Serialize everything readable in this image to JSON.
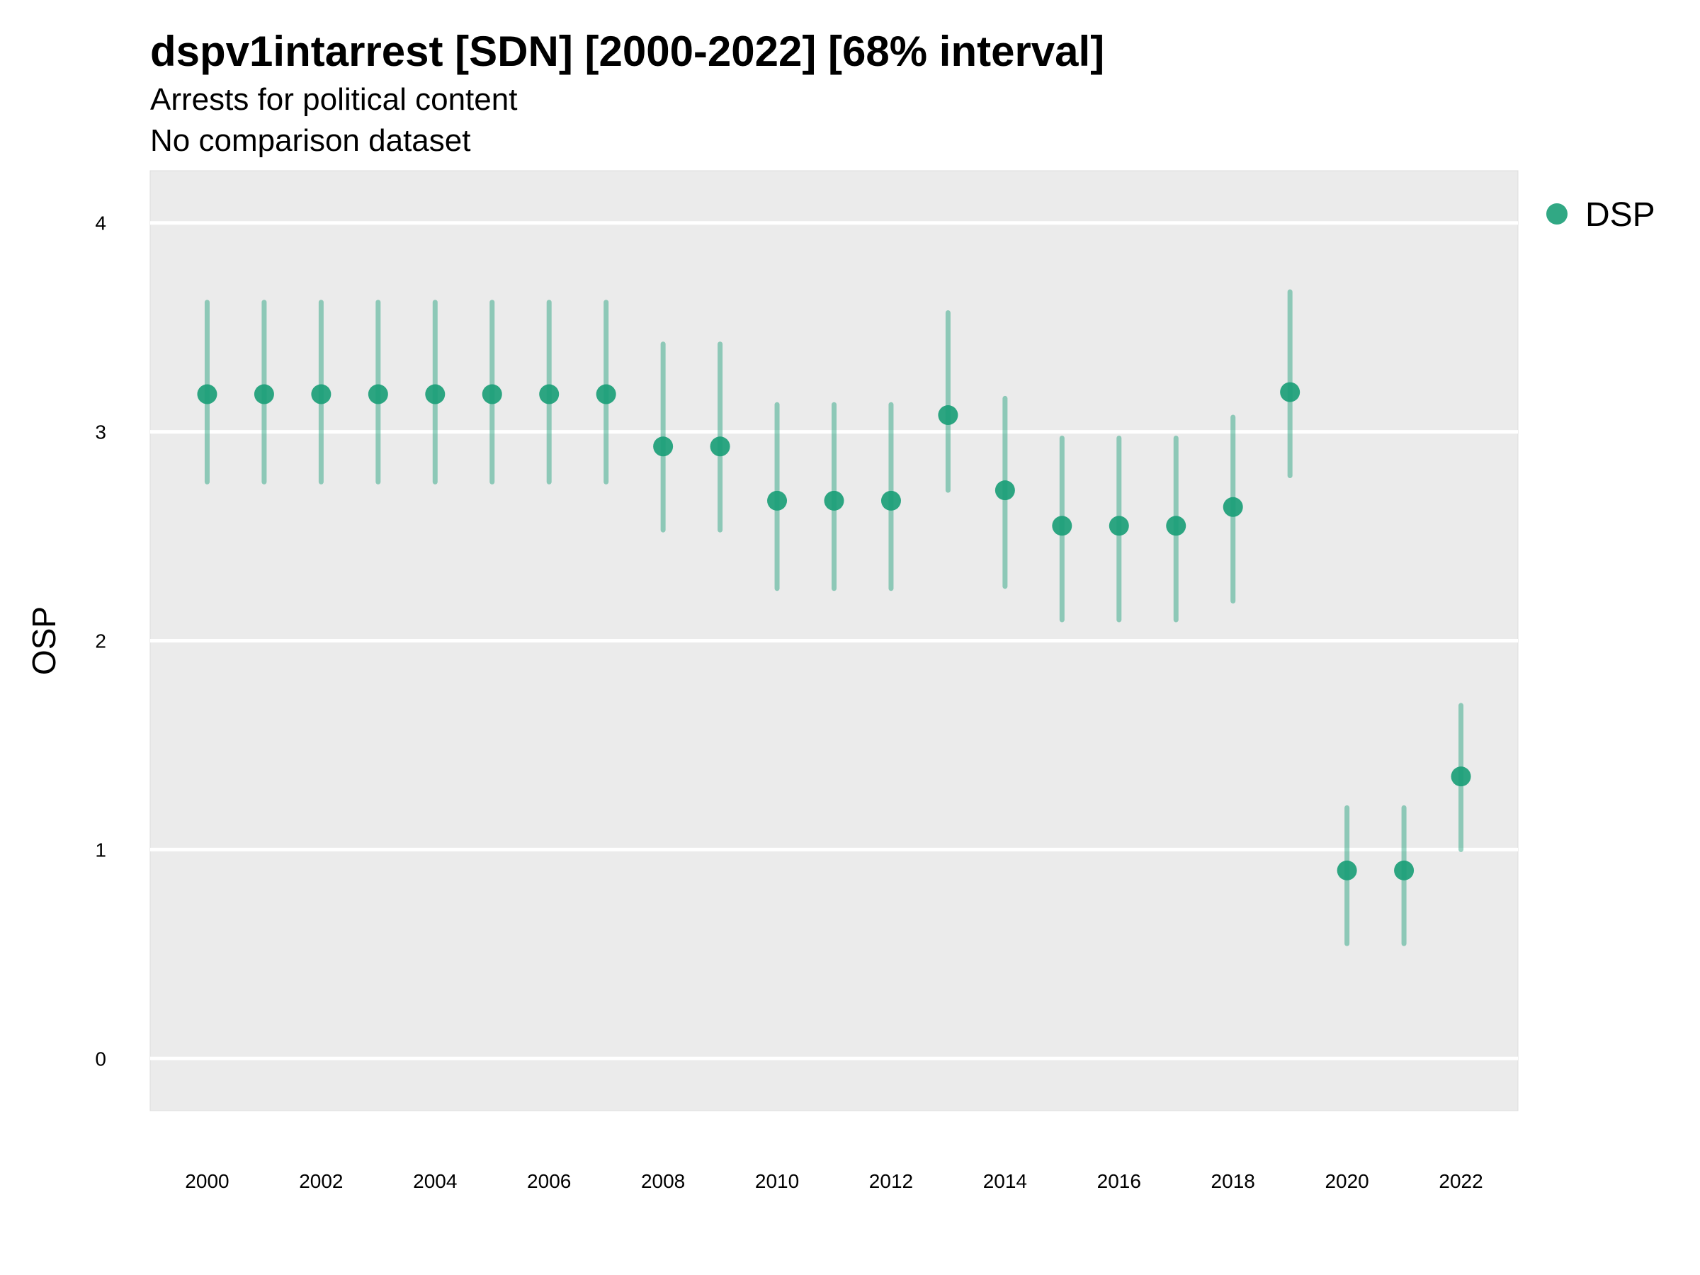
{
  "chart_data": {
    "type": "scatter",
    "title": "dspv1intarrest [SDN] [2000-2022] [68% interval]",
    "subtitle": "Arrests for political content",
    "caption": "No comparison dataset",
    "ylabel": "OSP",
    "xlabel": "",
    "ylim": [
      -0.25,
      4.25
    ],
    "xlim": [
      1999,
      2023
    ],
    "yticks": [
      0,
      1,
      2,
      3,
      4
    ],
    "xticks": [
      "2000",
      "2002",
      "2004",
      "2006",
      "2008",
      "2010",
      "2012",
      "2014",
      "2016",
      "2018",
      "2020",
      "2022"
    ],
    "grid": true,
    "legend_position": "right",
    "series": [
      {
        "name": "DSP",
        "color": "#1b9e77",
        "points": [
          {
            "x": 2000,
            "y": 3.18,
            "lo": 2.76,
            "hi": 3.62
          },
          {
            "x": 2001,
            "y": 3.18,
            "lo": 2.76,
            "hi": 3.62
          },
          {
            "x": 2002,
            "y": 3.18,
            "lo": 2.76,
            "hi": 3.62
          },
          {
            "x": 2003,
            "y": 3.18,
            "lo": 2.76,
            "hi": 3.62
          },
          {
            "x": 2004,
            "y": 3.18,
            "lo": 2.76,
            "hi": 3.62
          },
          {
            "x": 2005,
            "y": 3.18,
            "lo": 2.76,
            "hi": 3.62
          },
          {
            "x": 2006,
            "y": 3.18,
            "lo": 2.76,
            "hi": 3.62
          },
          {
            "x": 2007,
            "y": 3.18,
            "lo": 2.76,
            "hi": 3.62
          },
          {
            "x": 2008,
            "y": 2.93,
            "lo": 2.53,
            "hi": 3.42
          },
          {
            "x": 2009,
            "y": 2.93,
            "lo": 2.53,
            "hi": 3.42
          },
          {
            "x": 2010,
            "y": 2.67,
            "lo": 2.25,
            "hi": 3.13
          },
          {
            "x": 2011,
            "y": 2.67,
            "lo": 2.25,
            "hi": 3.13
          },
          {
            "x": 2012,
            "y": 2.67,
            "lo": 2.25,
            "hi": 3.13
          },
          {
            "x": 2013,
            "y": 3.08,
            "lo": 2.72,
            "hi": 3.57
          },
          {
            "x": 2014,
            "y": 2.72,
            "lo": 2.26,
            "hi": 3.16
          },
          {
            "x": 2015,
            "y": 2.55,
            "lo": 2.1,
            "hi": 2.97
          },
          {
            "x": 2016,
            "y": 2.55,
            "lo": 2.1,
            "hi": 2.97
          },
          {
            "x": 2017,
            "y": 2.55,
            "lo": 2.1,
            "hi": 2.97
          },
          {
            "x": 2018,
            "y": 2.64,
            "lo": 2.19,
            "hi": 3.07
          },
          {
            "x": 2019,
            "y": 3.19,
            "lo": 2.79,
            "hi": 3.67
          },
          {
            "x": 2020,
            "y": 0.9,
            "lo": 0.55,
            "hi": 1.2
          },
          {
            "x": 2021,
            "y": 0.9,
            "lo": 0.55,
            "hi": 1.2
          },
          {
            "x": 2022,
            "y": 1.35,
            "lo": 1.0,
            "hi": 1.69
          }
        ]
      }
    ]
  },
  "legend": {
    "label": "DSP",
    "color": "#1b9e77"
  },
  "panel_color": "#ebebeb",
  "grid_color": "#ffffff"
}
